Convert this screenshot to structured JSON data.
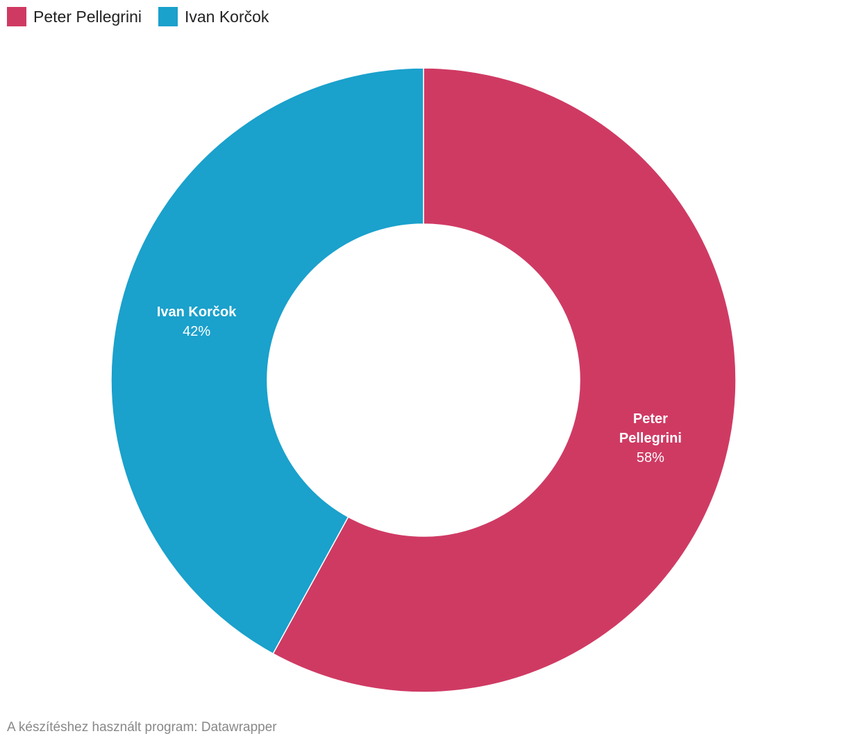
{
  "chart_data": {
    "type": "donut",
    "categories": [
      "Peter Pellegrini",
      "Ivan Korčok"
    ],
    "values": [
      58,
      42
    ],
    "value_labels": [
      "58%",
      "42%"
    ],
    "colors": [
      "#cf3a63",
      "#1aa1cc"
    ],
    "source": "A készítéshez használt program: Datawrapper"
  }
}
